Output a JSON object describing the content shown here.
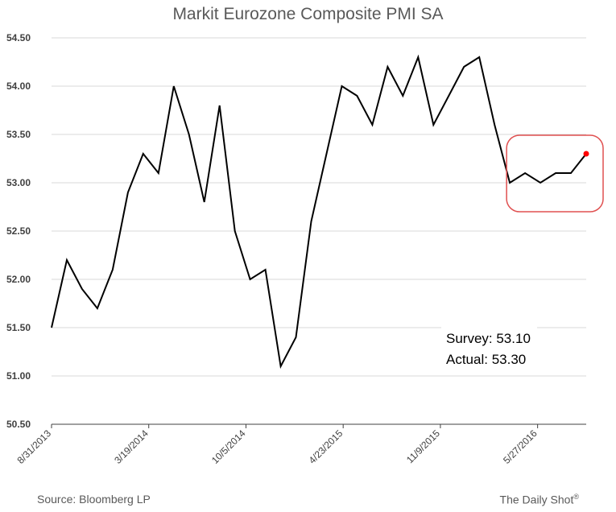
{
  "chart_data": {
    "type": "line",
    "title": "Markit Eurozone Composite PMI SA",
    "xlabel": "",
    "ylabel": "",
    "ylim": [
      50.5,
      54.5
    ],
    "yticks": [
      "50.50",
      "51.00",
      "51.50",
      "52.00",
      "52.50",
      "53.00",
      "53.50",
      "54.00",
      "54.50"
    ],
    "xticks": [
      "8/31/2013",
      "3/19/2014",
      "10/5/2014",
      "4/23/2015",
      "11/9/2015",
      "5/27/2016"
    ],
    "grid": "horizontal",
    "series": [
      {
        "x": [
          "2013-08",
          "2013-09",
          "2013-10",
          "2013-11",
          "2013-12",
          "2014-01",
          "2014-02",
          "2014-03",
          "2014-04",
          "2014-05",
          "2014-06",
          "2014-07",
          "2014-08",
          "2014-09",
          "2014-10",
          "2014-11",
          "2014-12",
          "2015-01",
          "2015-02",
          "2015-03",
          "2015-04",
          "2015-05",
          "2015-06",
          "2015-07",
          "2015-08",
          "2015-09",
          "2015-10",
          "2015-11",
          "2015-12",
          "2016-01",
          "2016-02",
          "2016-03",
          "2016-04",
          "2016-05",
          "2016-06",
          "2016-07"
        ],
        "values": [
          51.5,
          52.2,
          51.9,
          51.7,
          52.1,
          52.9,
          53.3,
          53.1,
          54.0,
          53.5,
          52.8,
          53.8,
          52.5,
          52.0,
          52.1,
          51.1,
          51.4,
          52.6,
          53.3,
          54.0,
          53.9,
          53.6,
          54.2,
          53.9,
          54.3,
          53.6,
          53.9,
          54.2,
          54.3,
          53.6,
          53.0,
          53.1,
          53.0,
          53.1,
          53.1,
          53.3
        ],
        "color": "#000000"
      }
    ],
    "highlight": {
      "from": "2016-02",
      "to": "2016-07",
      "box_color": "#e05050",
      "marker_color": "#ff0000"
    }
  },
  "annotation": {
    "survey": "Survey: 53.10",
    "actual": "Actual:  53.30"
  },
  "footer": {
    "source": "Source: Bloomberg LP",
    "brand": "The Daily Shot",
    "brand_mark": "®"
  }
}
